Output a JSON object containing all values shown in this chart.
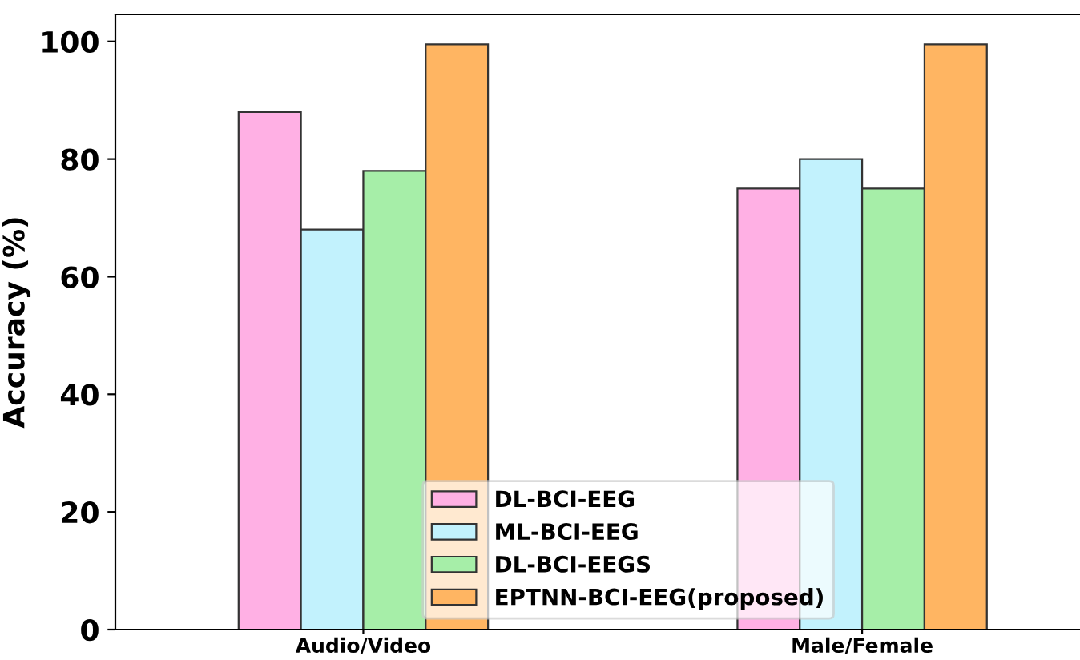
{
  "chart_data": {
    "type": "bar",
    "ylabel": "Accuracy (%)",
    "categories": [
      "Audio/Video",
      "Male/Female"
    ],
    "series": [
      {
        "name": "DL-BCI-EEG",
        "color": "#ffb0e4",
        "values": [
          88,
          75
        ]
      },
      {
        "name": "ML-BCI-EEG",
        "color": "#c2f2fd",
        "values": [
          68,
          80
        ]
      },
      {
        "name": "DL-BCI-EEGS",
        "color": "#a6eea8",
        "values": [
          78,
          75
        ]
      },
      {
        "name": "EPTNN-BCI-EEG(proposed)",
        "color": "#ffb562",
        "values": [
          99.5,
          99.5
        ]
      }
    ],
    "ylim": [
      0,
      104.6
    ],
    "yticks": [
      0,
      20,
      40,
      60,
      80,
      100
    ],
    "legend": "bottom",
    "grid": false
  }
}
